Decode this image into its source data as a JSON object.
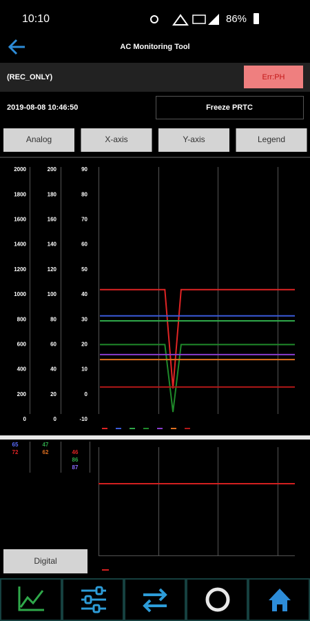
{
  "status_bar": {
    "time": "10:10",
    "battery": "86%"
  },
  "header": {
    "title": "AC Monitoring Tool"
  },
  "mode": "(REC_ONLY)",
  "error_button": "Err:PH",
  "timestamp": "2019-08-08 10:46:50",
  "freeze_button": "Freeze PRTC",
  "buttons": [
    "Analog",
    "X-axis",
    "Y-axis",
    "Legend"
  ],
  "chart_data": {
    "type": "line",
    "categories": [
      null,
      null,
      null,
      null,
      null,
      null,
      null,
      null,
      null,
      null,
      null,
      null,
      null,
      null,
      null,
      null,
      null,
      null,
      null,
      null,
      null,
      null,
      null,
      null,
      null
    ],
    "ylim": [
      -10,
      90
    ],
    "yticks": [
      -10,
      0,
      10,
      20,
      30,
      40,
      50,
      60,
      70,
      80,
      90
    ],
    "y2lim": [
      0,
      200
    ],
    "y2ticks": [
      0,
      20,
      40,
      60,
      80,
      100,
      120,
      140,
      160,
      180,
      200
    ],
    "y3lim": [
      0,
      2000
    ],
    "y3ticks": [
      0,
      200,
      400,
      600,
      800,
      1000,
      1200,
      1400,
      1600,
      1800,
      2000
    ],
    "series": [
      {
        "color": "#e02424",
        "values": [
          42,
          42,
          42,
          42,
          42,
          42,
          42,
          42,
          42,
          2.5,
          42,
          42,
          42,
          42,
          42,
          42,
          42,
          42,
          42,
          42,
          42,
          42,
          42,
          42,
          42
        ]
      },
      {
        "color": "#3b5bdb",
        "values": [
          31.5,
          31.5,
          31.5,
          31.5,
          31.5,
          31.5,
          31.5,
          31.5,
          31.5,
          31.5,
          31.5,
          31.5,
          31.5,
          31.5,
          31.5,
          31.5,
          31.5,
          31.5,
          31.5,
          31.5,
          31.5,
          31.5,
          31.5,
          31.5,
          31.5
        ]
      },
      {
        "color": "#2fa84a",
        "values": [
          29.5,
          29.5,
          29.5,
          29.5,
          29.5,
          29.5,
          29.5,
          29.5,
          29.5,
          29.5,
          29.5,
          29.5,
          29.5,
          29.5,
          29.5,
          29.5,
          29.5,
          29.5,
          29.5,
          29.5,
          29.5,
          29.5,
          29.5,
          29.5,
          29.5
        ]
      },
      {
        "color": "#1f8a2a",
        "values": [
          20,
          20,
          20,
          20,
          20,
          20,
          20,
          20,
          20,
          -7,
          20,
          20,
          20,
          20,
          20,
          20,
          20,
          20,
          20,
          20,
          20,
          20,
          20,
          20,
          20
        ]
      },
      {
        "color": "#8a3ccf",
        "values": [
          16,
          16,
          16,
          16,
          16,
          16,
          16,
          16,
          16,
          16,
          16,
          16,
          16,
          16,
          16,
          16,
          16,
          16,
          16,
          16,
          16,
          16,
          16,
          16,
          16
        ]
      },
      {
        "color": "#e07020",
        "values": [
          14,
          14,
          14,
          14,
          14,
          14,
          14,
          14,
          14,
          14,
          14,
          14,
          14,
          14,
          14,
          14,
          14,
          14,
          14,
          14,
          14,
          14,
          14,
          14,
          14
        ]
      },
      {
        "color": "#b01818",
        "values": [
          3,
          3,
          3,
          3,
          3,
          3,
          3,
          3,
          3,
          3,
          3,
          3,
          3,
          3,
          3,
          3,
          3,
          3,
          3,
          3,
          3,
          3,
          3,
          3,
          3
        ]
      }
    ]
  },
  "readouts": [
    {
      "value": 65,
      "color": "#5a6cff"
    },
    {
      "value": 72,
      "color": "#e02424"
    },
    {
      "value": 47,
      "color": "#2fa84a"
    },
    {
      "value": 62,
      "color": "#e07020"
    },
    {
      "value": 46,
      "color": "#e02424"
    },
    {
      "value": 86,
      "color": "#2fa84a"
    },
    {
      "value": 87,
      "color": "#8a6cff"
    }
  ],
  "digital_button": "Digital"
}
